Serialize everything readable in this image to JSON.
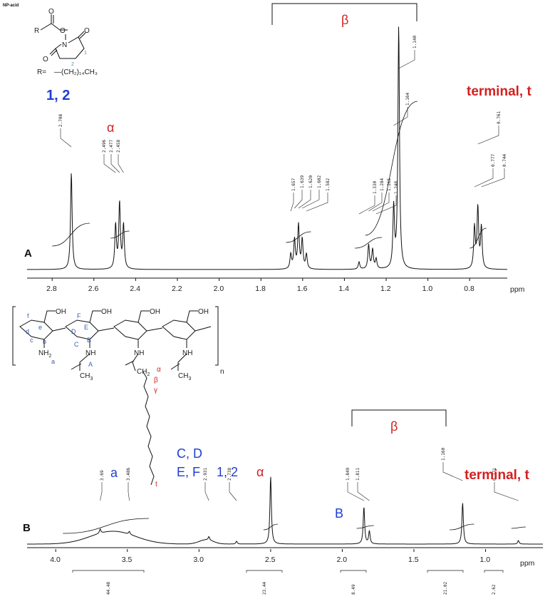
{
  "chart_data": [
    {
      "type": "line",
      "panel": "A",
      "xlabel": "ppm",
      "xlim": [
        2.92,
        0.62
      ],
      "x_ticks": [
        "2.8",
        "2.6",
        "2.4",
        "2.2",
        "2.0",
        "1.8",
        "1.6",
        "1.4",
        "1.2",
        "1.0",
        "0.8"
      ],
      "peak_labels": [
        "2.708",
        "2.496",
        "2.477",
        "2.458",
        "1.657",
        "1.639",
        "1.620",
        "1.602",
        "1.582",
        "1.330",
        "1.284",
        "1.265",
        "1.248",
        "1.164",
        "1.140",
        "0.777",
        "0.761",
        "0.744"
      ],
      "peaks": [
        {
          "x": 2.708,
          "y": 0.4
        },
        {
          "x": 2.496,
          "y": 0.18
        },
        {
          "x": 2.477,
          "y": 0.27
        },
        {
          "x": 2.458,
          "y": 0.18
        },
        {
          "x": 1.657,
          "y": 0.06
        },
        {
          "x": 1.639,
          "y": 0.12
        },
        {
          "x": 1.62,
          "y": 0.18
        },
        {
          "x": 1.602,
          "y": 0.12
        },
        {
          "x": 1.582,
          "y": 0.06
        },
        {
          "x": 1.33,
          "y": 0.03
        },
        {
          "x": 1.284,
          "y": 0.1
        },
        {
          "x": 1.265,
          "y": 0.08
        },
        {
          "x": 1.248,
          "y": 0.04
        },
        {
          "x": 1.164,
          "y": 0.25
        },
        {
          "x": 1.14,
          "y": 1.0
        },
        {
          "x": 0.777,
          "y": 0.17
        },
        {
          "x": 0.761,
          "y": 0.25
        },
        {
          "x": 0.744,
          "y": 0.17
        }
      ],
      "annotations": [
        {
          "text": "1, 2",
          "color": "#1f3fd0"
        },
        {
          "text": "α",
          "color": "#d42020"
        },
        {
          "text": "β",
          "color": "#d42020"
        },
        {
          "text": "terminal, t",
          "color": "#d42020"
        }
      ]
    },
    {
      "type": "line",
      "panel": "B",
      "xlabel": "ppm",
      "xlim": [
        4.2,
        0.6
      ],
      "x_ticks": [
        "4.0",
        "3.5",
        "3.0",
        "2.5",
        "2.0",
        "1.5",
        "1.0"
      ],
      "peak_labels": [
        "3.69",
        "3.486",
        "2.931",
        "2.738",
        "1.849",
        "1.811",
        "1.160",
        "0.771"
      ],
      "integrals": [
        "44.48",
        "23.44",
        "8.49",
        "21.02",
        "2.62"
      ],
      "peaks": [
        {
          "x": 3.69,
          "y": 0.06
        },
        {
          "x": 3.486,
          "y": 0.04
        },
        {
          "x": 2.931,
          "y": 0.05
        },
        {
          "x": 2.738,
          "y": 0.04
        },
        {
          "x": 2.5,
          "y": 0.95
        },
        {
          "x": 1.849,
          "y": 0.52
        },
        {
          "x": 1.811,
          "y": 0.18
        },
        {
          "x": 1.16,
          "y": 0.58
        },
        {
          "x": 0.771,
          "y": 0.05
        }
      ],
      "annotations": [
        {
          "text": "a",
          "color": "#1f3fd0"
        },
        {
          "text": "C, D",
          "color": "#1f3fd0"
        },
        {
          "text": "E, F",
          "color": "#1f3fd0"
        },
        {
          "text": "1, 2",
          "color": "#1f3fd0"
        },
        {
          "text": "α",
          "color": "#d42020"
        },
        {
          "text": "B",
          "color": "#1f3fd0"
        },
        {
          "text": "β",
          "color": "#d42020"
        },
        {
          "text": "terminal, t",
          "color": "#d42020"
        }
      ]
    }
  ],
  "structure_A": {
    "label": "NP-acid",
    "r_group": "R",
    "carbon_labels": [
      "1",
      "2"
    ],
    "r_definition_lhs": "R=",
    "r_definition": "—(CH₂)₁₄CH₃"
  },
  "structure_B": {
    "ring_labels": [
      "f",
      "e",
      "d",
      "c",
      "b",
      "a",
      "F",
      "E",
      "D",
      "C",
      "B",
      "A"
    ],
    "chain_labels": [
      "α",
      "β",
      "γ",
      "t"
    ],
    "repeat": "n"
  },
  "panel_letters": [
    "A",
    "B"
  ]
}
